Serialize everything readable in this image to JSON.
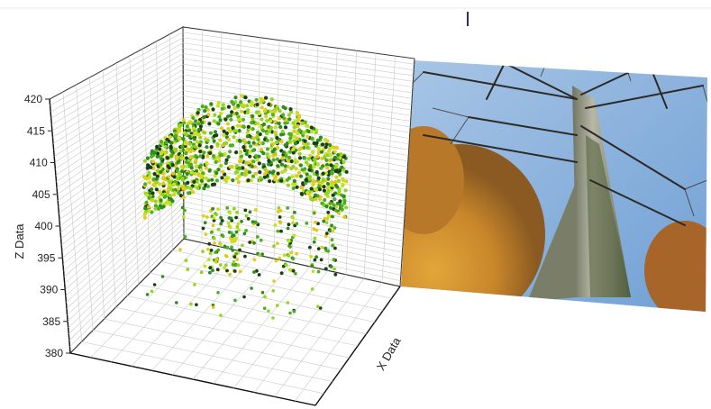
{
  "chart_data": {
    "type": "scatter",
    "projection": "3d",
    "zlabel": "Z Data",
    "xlabel": "X Data",
    "zlim": [
      380,
      420
    ],
    "z_ticks": [
      "420",
      "415",
      "410",
      "405",
      "400",
      "395",
      "390",
      "385",
      "380"
    ],
    "grid": true,
    "point_colors": [
      "#1a3d12",
      "#2e8b1f",
      "#4caf20",
      "#8fd61e",
      "#c8e01a",
      "#e6c81a"
    ],
    "series": [
      {
        "name": "",
        "description": "point cloud of a tree: dense canopy cluster between Z 403 and 418, sparse trunk points between Z 385 and 402"
      }
    ],
    "backdrop_image": "photo-tree-trunk-looking-up"
  }
}
